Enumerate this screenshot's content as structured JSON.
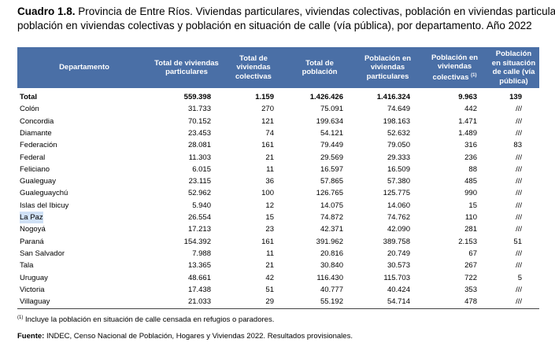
{
  "header": {
    "label": "Cuadro 1.8.",
    "title_line1": "Provincia de Entre Ríos. Viviendas particulares, viviendas colectivas, población en viviendas particulares,",
    "title_line2": "población en viviendas colectivas y población en situación de calle (vía pública), por departamento. Año 2022"
  },
  "table": {
    "columns": [
      "Departamento",
      "Total de viviendas particulares",
      "Total de viviendas colectivas",
      "Total de población",
      "Población en viviendas particulares",
      "Población en viviendas colectivas",
      "Población en situación de calle (vía pública)"
    ],
    "column_note": "(1)",
    "rows": [
      [
        "Total",
        "559.398",
        "1.159",
        "1.426.426",
        "1.416.324",
        "9.963",
        "139"
      ],
      [
        "Colón",
        "31.733",
        "270",
        "75.091",
        "74.649",
        "442",
        "///"
      ],
      [
        "Concordia",
        "70.152",
        "121",
        "199.634",
        "198.163",
        "1.471",
        "///"
      ],
      [
        "Diamante",
        "23.453",
        "74",
        "54.121",
        "52.632",
        "1.489",
        "///"
      ],
      [
        "Federación",
        "28.081",
        "161",
        "79.449",
        "79.050",
        "316",
        "83"
      ],
      [
        "Federal",
        "11.303",
        "21",
        "29.569",
        "29.333",
        "236",
        "///"
      ],
      [
        "Feliciano",
        "6.015",
        "11",
        "16.597",
        "16.509",
        "88",
        "///"
      ],
      [
        "Gualeguay",
        "23.115",
        "36",
        "57.865",
        "57.380",
        "485",
        "///"
      ],
      [
        "Gualeguaychú",
        "52.962",
        "100",
        "126.765",
        "125.775",
        "990",
        "///"
      ],
      [
        "Islas del Ibicuy",
        "5.940",
        "12",
        "14.075",
        "14.060",
        "15",
        "///"
      ],
      [
        "La Paz",
        "26.554",
        "15",
        "74.872",
        "74.762",
        "110",
        "///"
      ],
      [
        "Nogoyá",
        "17.213",
        "23",
        "42.371",
        "42.090",
        "281",
        "///"
      ],
      [
        "Paraná",
        "154.392",
        "161",
        "391.962",
        "389.758",
        "2.153",
        "51"
      ],
      [
        "San Salvador",
        "7.988",
        "11",
        "20.816",
        "20.749",
        "67",
        "///"
      ],
      [
        "Tala",
        "13.365",
        "21",
        "30.840",
        "30.573",
        "267",
        "///"
      ],
      [
        "Uruguay",
        "48.661",
        "42",
        "116.430",
        "115.703",
        "722",
        "5"
      ],
      [
        "Victoria",
        "17.438",
        "51",
        "40.777",
        "40.424",
        "353",
        "///"
      ],
      [
        "Villaguay",
        "21.033",
        "29",
        "55.192",
        "54.714",
        "478",
        "///"
      ]
    ]
  },
  "footnote": {
    "marker": "(1)",
    "text": "Incluye la población en situación de calle censada en refugios o paradores."
  },
  "source": {
    "label": "Fuente:",
    "text": "INDEC, Censo Nacional de Población, Hogares y Viviendas 2022. Resultados provisionales."
  }
}
